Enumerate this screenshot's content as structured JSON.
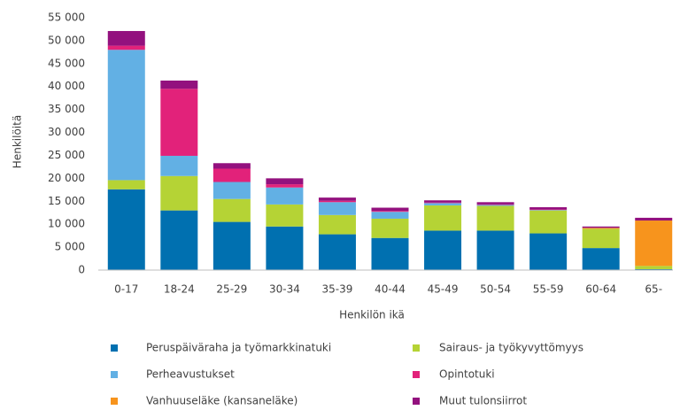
{
  "chart_data": {
    "type": "stacked_bar",
    "x_label": "Henkilön ikä",
    "y_label": "Henkilöitä",
    "categories": [
      "0-17",
      "18-24",
      "25-29",
      "30-34",
      "35-39",
      "40-44",
      "45-49",
      "50-54",
      "55-59",
      "60-64",
      "65-"
    ],
    "series": [
      {
        "name": "Peruspäiväraha ja työmarkkinatuki",
        "color": "#0070b0",
        "values": [
          17600,
          13000,
          10500,
          9500,
          7800,
          7000,
          8600,
          8600,
          8000,
          4800,
          200
        ]
      },
      {
        "name": "Sairaus- ja työkyvyttömyys",
        "color": "#b5d335",
        "values": [
          2000,
          7500,
          5000,
          4800,
          4200,
          4200,
          5500,
          5400,
          5000,
          4200,
          700
        ]
      },
      {
        "name": "Perheavustukset",
        "color": "#62b0e4",
        "values": [
          28400,
          4400,
          3700,
          3700,
          2800,
          1500,
          500,
          200,
          100,
          0,
          0
        ]
      },
      {
        "name": "Opintotuki",
        "color": "#e2227a",
        "values": [
          900,
          14600,
          2900,
          700,
          300,
          200,
          100,
          100,
          100,
          0,
          0
        ]
      },
      {
        "name": "Vanhuuseläke (kansaneläke)",
        "color": "#f7941d",
        "values": [
          0,
          0,
          0,
          0,
          0,
          0,
          0,
          0,
          0,
          200,
          9900
        ]
      },
      {
        "name": "Muut tulonsiirrot",
        "color": "#93117e",
        "values": [
          3200,
          1800,
          1200,
          1300,
          700,
          700,
          500,
          500,
          500,
          300,
          600
        ]
      }
    ],
    "ylim": [
      0,
      55000
    ],
    "yticks": [
      0,
      {
        "value": 5000,
        "label": "5 000"
      },
      {
        "value": 10000,
        "label": "10 000"
      },
      {
        "value": 15000,
        "label": "15 000"
      },
      {
        "value": 20000,
        "label": "20 000"
      },
      {
        "value": 25000,
        "label": "25 000"
      },
      {
        "value": 30000,
        "label": "30 000"
      },
      {
        "value": 35000,
        "label": "35 000"
      },
      {
        "value": 40000,
        "label": "40 000"
      },
      {
        "value": 45000,
        "label": "45 000"
      },
      {
        "value": 50000,
        "label": "50 000"
      },
      {
        "value": 55000,
        "label": "55 000"
      }
    ],
    "grid": false
  }
}
